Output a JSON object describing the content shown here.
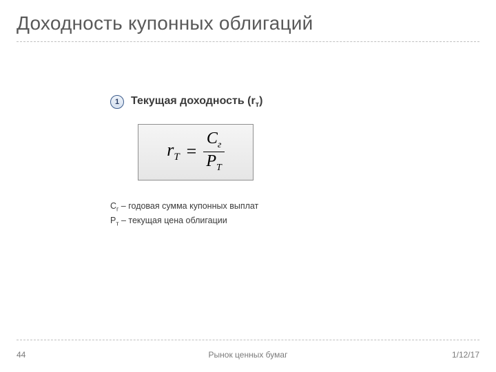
{
  "slide": {
    "title": "Доходность купонных облигаций",
    "badge_number": "1",
    "subheading_prefix": "Текущая доходность (r",
    "subheading_sub": "т",
    "subheading_suffix": ")",
    "formula": {
      "lhs_base": "r",
      "lhs_sub": "T",
      "eq": "=",
      "num_base": "C",
      "num_sub": "г",
      "den_base": "P",
      "den_sub": "T"
    },
    "defs": {
      "line1_sym_base": "C",
      "line1_sym_sub": "г",
      "line1_text": " – годовая сумма купонных выплат",
      "line2_sym_base": "P",
      "line2_sym_sub": "т",
      "line2_text": " – текущая цена облигации"
    }
  },
  "footer": {
    "page": "44",
    "center": "Рынок ценных бумаг",
    "date": "1/12/17"
  },
  "style": {
    "title_color": "#595959",
    "text_color": "#3a3a3a",
    "rule_color": "#bfbfbf",
    "badge_border": "#3b5b8c",
    "formula_border": "#8f8f8f",
    "background": "#ffffff"
  }
}
